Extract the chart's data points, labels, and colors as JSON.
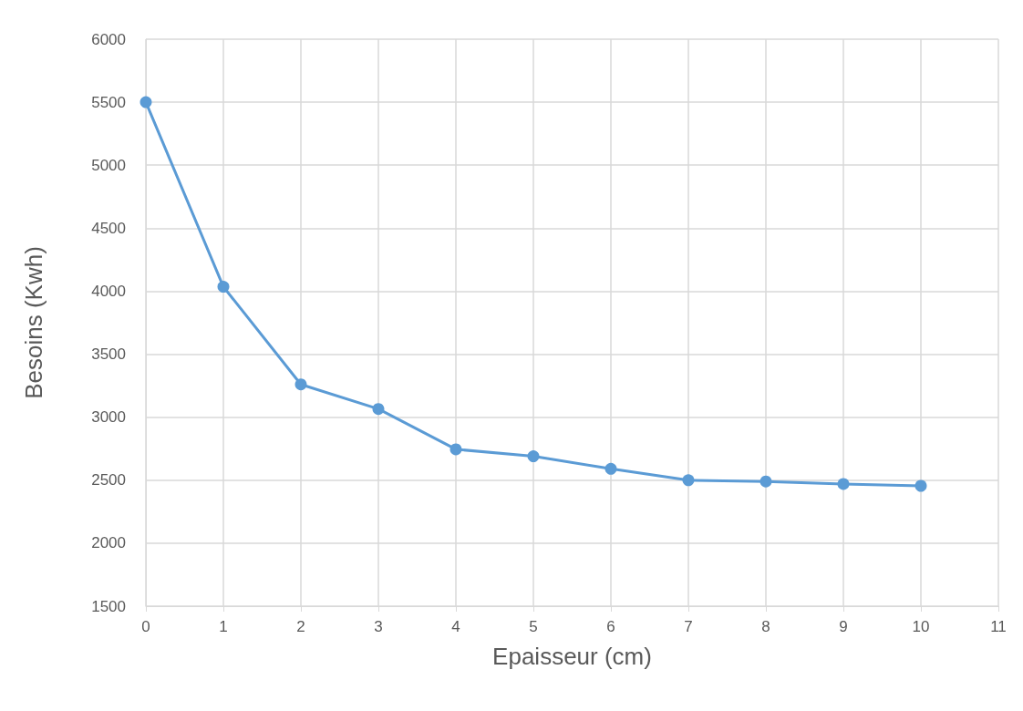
{
  "chart_data": {
    "type": "line",
    "xlabel": "Epaisseur (cm)",
    "ylabel": "Besoins (Kwh)",
    "x": [
      0,
      1,
      2,
      3,
      4,
      5,
      6,
      7,
      8,
      9,
      10
    ],
    "series": [
      {
        "color": "#5b9bd5",
        "values": [
          5500,
          4035,
          3260,
          3065,
          2745,
          2690,
          2590,
          2500,
          2490,
          2470,
          2455
        ]
      }
    ],
    "xlim": [
      0,
      11
    ],
    "xticks": [
      0,
      1,
      2,
      3,
      4,
      5,
      6,
      7,
      8,
      9,
      10,
      11
    ],
    "ylim": [
      1500,
      6000
    ],
    "yticks": [
      1500,
      2000,
      2500,
      3000,
      3500,
      4000,
      4500,
      5000,
      5500,
      6000
    ],
    "grid": true,
    "marker": "circle",
    "line_style": "solid"
  }
}
